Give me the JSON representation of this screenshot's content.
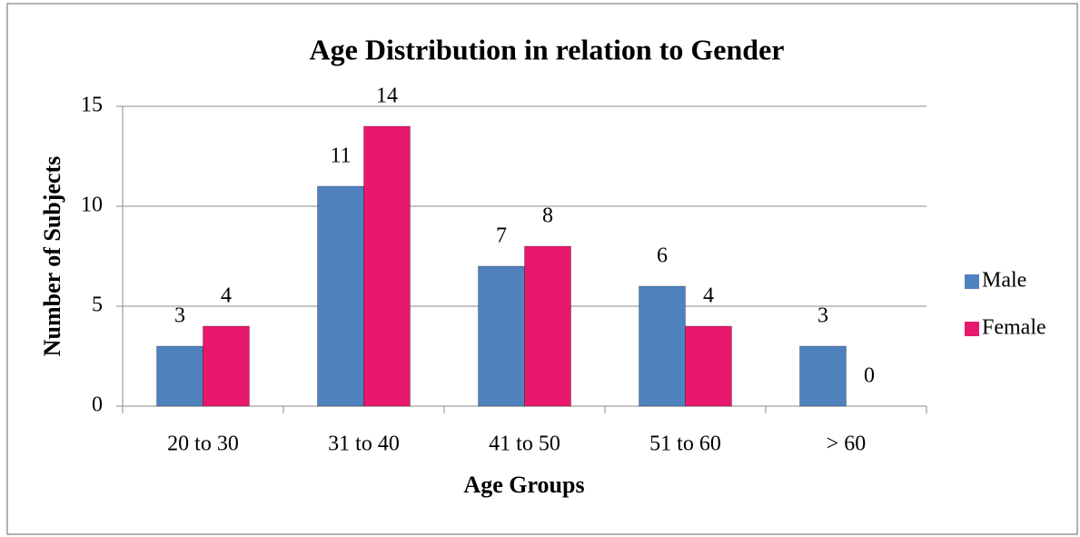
{
  "chart_data": {
    "type": "bar",
    "title": "Age Distribution in relation to Gender",
    "x_label": "Age Groups",
    "y_label": "Number of Subjects",
    "categories": [
      "20 to 30",
      "31 to 40",
      "41 to 50",
      "51 to 60",
      "> 60"
    ],
    "series": [
      {
        "name": "Male",
        "color": "#4f81bd",
        "values": [
          3,
          11,
          7,
          6,
          3
        ]
      },
      {
        "name": "Female",
        "color": "#e8186d",
        "values": [
          4,
          14,
          8,
          4,
          0
        ]
      }
    ],
    "ylim": [
      0,
      15
    ],
    "yticks": [
      0,
      5,
      10,
      15
    ],
    "grid": true,
    "legend": "right"
  }
}
